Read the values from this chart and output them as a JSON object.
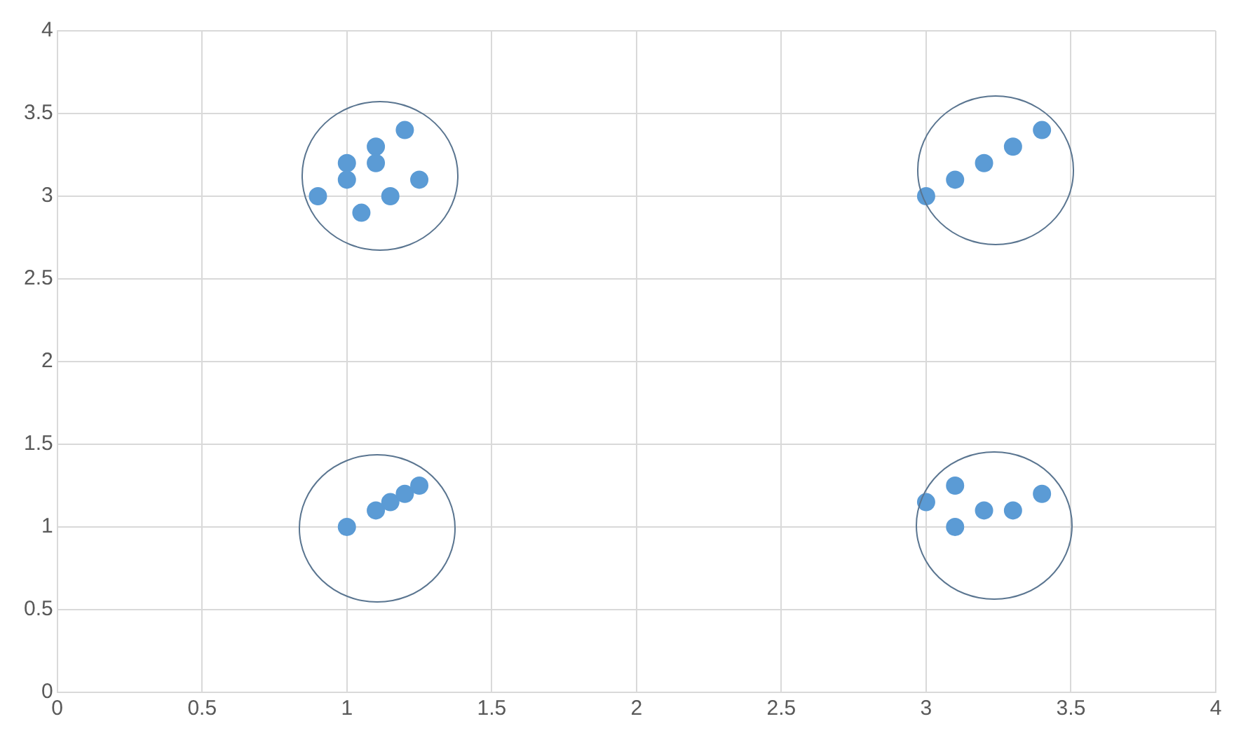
{
  "chart_data": {
    "type": "scatter",
    "x": [
      0.9,
      1.0,
      1.0,
      1.05,
      1.1,
      1.1,
      1.15,
      1.2,
      1.25,
      3.0,
      3.1,
      3.2,
      3.3,
      3.4,
      1.0,
      1.1,
      1.15,
      1.2,
      1.25,
      3.0,
      3.1,
      3.1,
      3.2,
      3.3,
      3.4
    ],
    "series": [
      {
        "color": "#5b9bd5",
        "values": [
          3.0,
          3.2,
          3.1,
          2.9,
          3.3,
          3.2,
          3.0,
          3.4,
          3.1,
          3.0,
          3.1,
          3.2,
          3.3,
          3.4,
          1.0,
          1.1,
          1.15,
          1.2,
          1.25,
          1.15,
          1.25,
          1.0,
          1.1,
          1.1,
          1.2
        ]
      }
    ],
    "xlim": [
      0,
      4
    ],
    "xticks": [
      0,
      0.5,
      1,
      1.5,
      2,
      2.5,
      3,
      3.5,
      4
    ],
    "ylim": [
      0,
      4
    ],
    "yticks": [
      0,
      0.5,
      1,
      1.5,
      2,
      2.5,
      3,
      3.5,
      4
    ],
    "grid": true,
    "legend": false,
    "marker": "circle"
  }
}
